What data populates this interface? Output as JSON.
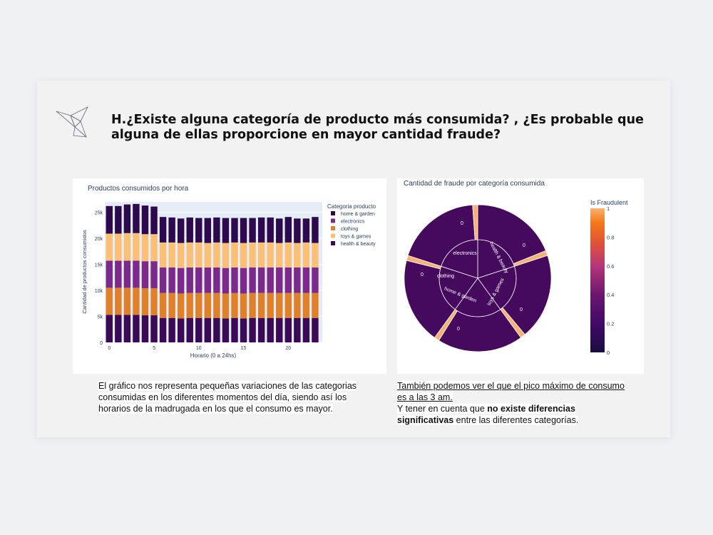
{
  "title": "H.¿Existe alguna categoría de producto más consumida? , ¿Es probable que alguna de ellas proporcione en mayor cantidad fraude?",
  "left_text": "El gráfico nos representa pequeñas variaciones de las categorias consumidas en los diferentes momentos del día, siendo así los horarios de la madrugada en los que el consumo es mayor.",
  "right_text": {
    "line1": "También podemos ver el que el pico máximo de consumo es a las 3 am.",
    "line2_pre": "Y tener en cuenta que ",
    "line2_bold": "no existe diferencias significativas",
    "line2_post": " entre las diferentes categorías."
  },
  "colors": {
    "home & garden": "#2d0a4e",
    "electronics": "#7b2a8c",
    "clothing": "#e0812a",
    "toys & games": "#fcbf76",
    "health & beauty": "#3a0a56",
    "sunburst_fill": "#45095e",
    "sunburst_slice": "#f9b170"
  },
  "chart_data": [
    {
      "type": "bar",
      "stacked": true,
      "title": "Productos consumidos por hora",
      "xlabel": "Horario (0 a 24hs)",
      "ylabel": "Cantidad de productos consumidos",
      "legend_title": "Categoria producto",
      "legend_position": "top-right",
      "x_ticks": [
        "0",
        "5",
        "10",
        "15",
        "20"
      ],
      "y_ticks": [
        "0",
        "5k",
        "10k",
        "15k",
        "20k",
        "25k"
      ],
      "ylim": [
        0,
        27000
      ],
      "grid": true,
      "x": [
        0,
        1,
        2,
        3,
        4,
        5,
        6,
        7,
        8,
        9,
        10,
        11,
        12,
        13,
        14,
        15,
        16,
        17,
        18,
        19,
        20,
        21,
        22,
        23
      ],
      "series": [
        {
          "name": "health & beauty",
          "values": [
            5300,
            5300,
            5300,
            5300,
            5200,
            5200,
            4700,
            4700,
            4600,
            4700,
            4700,
            4700,
            4700,
            4600,
            4700,
            4600,
            4700,
            4700,
            4700,
            4700,
            4700,
            4700,
            4700,
            4700
          ]
        },
        {
          "name": "clothing",
          "values": [
            5200,
            5200,
            5200,
            5200,
            5200,
            5200,
            4800,
            4800,
            4800,
            4800,
            4800,
            4800,
            4800,
            4800,
            4800,
            4800,
            4800,
            4800,
            4800,
            4800,
            4800,
            4800,
            4800,
            4800
          ]
        },
        {
          "name": "electronics",
          "values": [
            5200,
            5200,
            5200,
            5200,
            5200,
            5200,
            4900,
            4900,
            4900,
            4900,
            4900,
            4900,
            4900,
            4900,
            4900,
            4900,
            4900,
            4900,
            4900,
            4900,
            4900,
            4900,
            4900,
            4900
          ]
        },
        {
          "name": "toys & games",
          "values": [
            5200,
            5200,
            5300,
            5300,
            5200,
            5200,
            4800,
            4800,
            4800,
            4800,
            4800,
            4700,
            4800,
            4800,
            4800,
            4800,
            4800,
            4800,
            4800,
            4700,
            4800,
            4700,
            4800,
            4700
          ]
        },
        {
          "name": "home & garden",
          "values": [
            5300,
            5300,
            5500,
            5600,
            5500,
            5300,
            4900,
            4800,
            4700,
            4800,
            4700,
            4800,
            4800,
            4800,
            4700,
            4800,
            4700,
            4800,
            4800,
            4700,
            4900,
            4700,
            4600,
            5000
          ]
        }
      ]
    },
    {
      "type": "sunburst",
      "title": "Cantidad de fraude por categoría consumida",
      "colorbar_title": "Is Fraudulent",
      "colorbar_ticks": [
        "1",
        "0.8",
        "0.6",
        "0.4",
        "0.2",
        "0"
      ],
      "range": [
        0,
        1
      ],
      "inner": [
        {
          "label": "electronics",
          "value": 0.2
        },
        {
          "label": "health & beauty",
          "value": 0.2
        },
        {
          "label": "toys & games",
          "value": 0.2
        },
        {
          "label": "home & garden",
          "value": 0.2
        },
        {
          "label": "clothing",
          "value": 0.2
        }
      ],
      "outer_labels": [
        "0",
        "0",
        "0",
        "0",
        "0"
      ],
      "outer_highlight_value": 1
    }
  ]
}
